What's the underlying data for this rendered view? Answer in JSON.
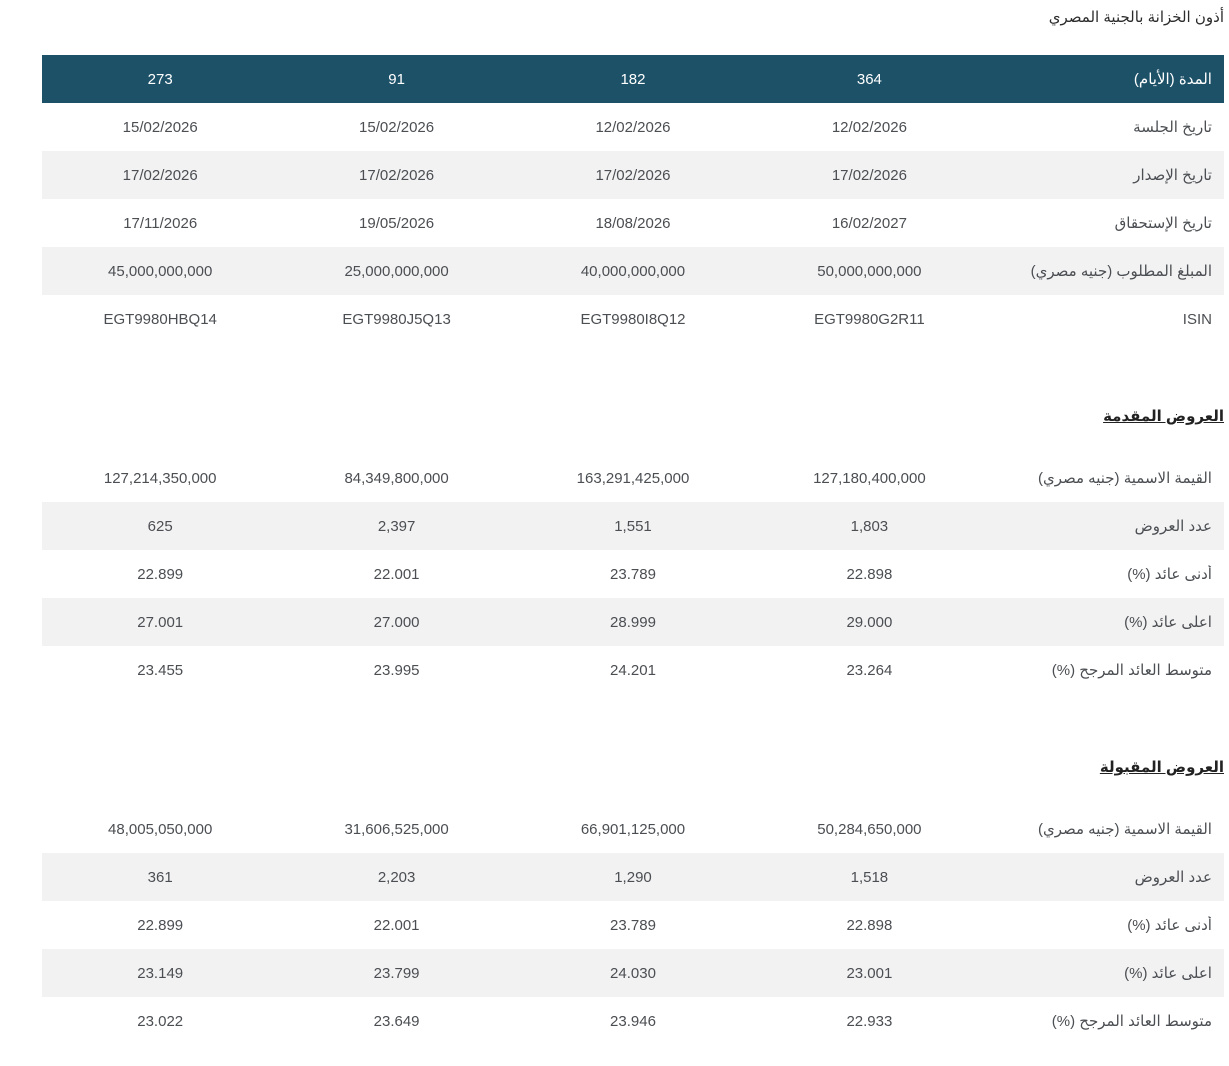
{
  "page_title": "أذون الخزانة بالجنية المصري",
  "colors": {
    "header_bg": "#1d5168",
    "header_text": "#ffffff",
    "stripe_bg": "#f2f2f3",
    "body_text": "#4b4e52"
  },
  "main_table": {
    "header": {
      "label": "المدة (الأيام)",
      "tenors": [
        "273",
        "91",
        "182",
        "364"
      ]
    },
    "rows": [
      {
        "label": "تاريخ الجلسة",
        "values": [
          "15/02/2026",
          "15/02/2026",
          "12/02/2026",
          "12/02/2026"
        ]
      },
      {
        "label": "تاريخ الإصدار",
        "values": [
          "17/02/2026",
          "17/02/2026",
          "17/02/2026",
          "17/02/2026"
        ]
      },
      {
        "label": "تاريخ الإستحقاق",
        "values": [
          "17/11/2026",
          "19/05/2026",
          "18/08/2026",
          "16/02/2027"
        ]
      },
      {
        "label": "المبلغ المطلوب (جنيه مصري)",
        "values": [
          "45,000,000,000",
          "25,000,000,000",
          "40,000,000,000",
          "50,000,000,000"
        ]
      },
      {
        "label": "ISIN",
        "values": [
          "EGT9980HBQ14",
          "EGT9980J5Q13",
          "EGT9980I8Q12",
          "EGT9980G2R11"
        ]
      }
    ]
  },
  "sections": [
    {
      "heading": "العروض المقدمة",
      "rows": [
        {
          "label": "القيمة الاسمية (جنيه مصري)",
          "values": [
            "127,214,350,000",
            "84,349,800,000",
            "163,291,425,000",
            "127,180,400,000"
          ]
        },
        {
          "label": "عدد العروض",
          "values": [
            "625",
            "2,397",
            "1,551",
            "1,803"
          ]
        },
        {
          "label": "أدنى عائد (%)",
          "values": [
            "22.899",
            "22.001",
            "23.789",
            "22.898"
          ]
        },
        {
          "label": "اعلى عائد (%)",
          "values": [
            "27.001",
            "27.000",
            "28.999",
            "29.000"
          ]
        },
        {
          "label": "متوسط العائد المرجح (%)",
          "values": [
            "23.455",
            "23.995",
            "24.201",
            "23.264"
          ]
        }
      ]
    },
    {
      "heading": "العروض المقبولة",
      "rows": [
        {
          "label": "القيمة الاسمية (جنيه مصري)",
          "values": [
            "48,005,050,000",
            "31,606,525,000",
            "66,901,125,000",
            "50,284,650,000"
          ]
        },
        {
          "label": "عدد العروض",
          "values": [
            "361",
            "2,203",
            "1,290",
            "1,518"
          ]
        },
        {
          "label": "أدنى عائد (%)",
          "values": [
            "22.899",
            "22.001",
            "23.789",
            "22.898"
          ]
        },
        {
          "label": "اعلى عائد (%)",
          "values": [
            "23.149",
            "23.799",
            "24.030",
            "23.001"
          ]
        },
        {
          "label": "متوسط العائد المرجح (%)",
          "values": [
            "23.022",
            "23.649",
            "23.946",
            "22.933"
          ]
        }
      ]
    }
  ]
}
